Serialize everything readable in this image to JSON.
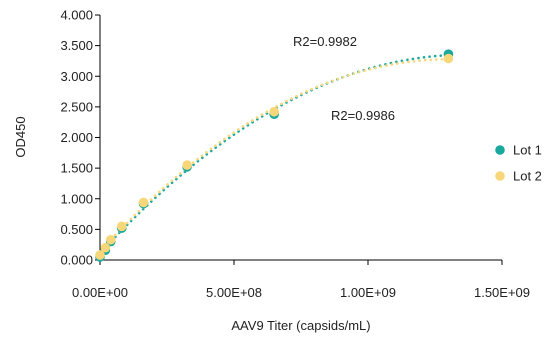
{
  "colors": {
    "lot1": "#1aa89c",
    "lot2": "#f7d77a",
    "axis": "#000000"
  },
  "chart_data": {
    "type": "scatter",
    "title": "",
    "xlabel": "AAV9 Titer (capsids/mL)",
    "ylabel": "OD450",
    "xlim": [
      0,
      1500000000
    ],
    "ylim": [
      0,
      4
    ],
    "x_ticks": [
      0,
      500000000,
      1000000000,
      1500000000
    ],
    "x_tick_labels": [
      "0.00E+00",
      "5.00E+08",
      "1.00E+09",
      "1.50E+09"
    ],
    "y_ticks": [
      0,
      0.5,
      1,
      1.5,
      2,
      2.5,
      3,
      3.5,
      4
    ],
    "y_tick_labels": [
      "0.000",
      "0.500",
      "1.000",
      "1.500",
      "2.000",
      "2.500",
      "3.000",
      "3.500",
      "4.000"
    ],
    "grid": false,
    "legend_position": "right",
    "series": [
      {
        "name": "Lot 1",
        "color_key": "lot1",
        "x": [
          0,
          20000000,
          40000000,
          81250000,
          162500000,
          325000000,
          650000000,
          1300000000
        ],
        "y": [
          0.05,
          0.16,
          0.3,
          0.52,
          0.92,
          1.52,
          2.38,
          3.36
        ],
        "trendline": "polynomial",
        "r2_label": "R2=0.9982"
      },
      {
        "name": "Lot 2",
        "color_key": "lot2",
        "x": [
          0,
          20000000,
          40000000,
          81250000,
          162500000,
          325000000,
          650000000,
          1300000000
        ],
        "y": [
          0.08,
          0.2,
          0.33,
          0.55,
          0.94,
          1.55,
          2.42,
          3.29
        ],
        "trendline": "polynomial",
        "r2_label": "R2=0.9986"
      }
    ]
  }
}
